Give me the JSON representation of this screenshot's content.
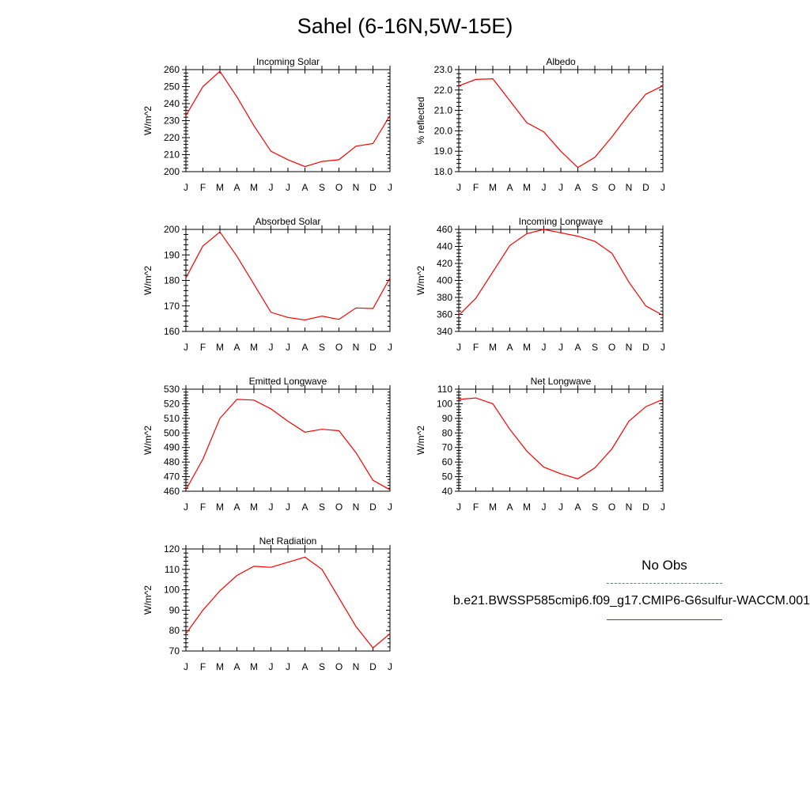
{
  "title": "Sahel (6-16N,5W-15E)",
  "legend": {
    "obs_label": "No Obs",
    "obs_color": "#6666ff",
    "model_label": "b.e21.BWSSP585cmip6.f09_g17.CMIP6-G6sulfur-WACCM.001",
    "model_color": "#ff0000"
  },
  "chart_data": [
    {
      "type": "line",
      "title": "Incoming Solar",
      "ylabel": "W/m^2",
      "categories": [
        "J",
        "F",
        "M",
        "A",
        "M",
        "J",
        "J",
        "A",
        "S",
        "O",
        "N",
        "D",
        "J"
      ],
      "ylim": [
        200,
        260
      ],
      "yticks": [
        "200",
        "210",
        "220",
        "230",
        "240",
        "250",
        "260"
      ],
      "series": [
        {
          "values": [
            233,
            250,
            259,
            244,
            227,
            212,
            207,
            203,
            206,
            207,
            215,
            216.5,
            233
          ]
        }
      ]
    },
    {
      "type": "line",
      "title": "Albedo",
      "ylabel": "% reflected",
      "categories": [
        "J",
        "F",
        "M",
        "A",
        "M",
        "J",
        "J",
        "A",
        "S",
        "O",
        "N",
        "D",
        "J"
      ],
      "ylim": [
        18,
        23
      ],
      "yticks": [
        "18.0",
        "19.0",
        "20.0",
        "21.0",
        "22.0",
        "23.0"
      ],
      "series": [
        {
          "values": [
            22.2,
            22.52,
            22.55,
            21.48,
            20.4,
            19.95,
            19.0,
            18.2,
            18.7,
            19.7,
            20.8,
            21.8,
            22.2
          ]
        }
      ]
    },
    {
      "type": "line",
      "title": "Absorbed Solar",
      "ylabel": "W/m^2",
      "categories": [
        "J",
        "F",
        "M",
        "A",
        "M",
        "J",
        "J",
        "A",
        "S",
        "O",
        "N",
        "D",
        "J"
      ],
      "ylim": [
        160,
        200
      ],
      "yticks": [
        "160",
        "170",
        "180",
        "190",
        "200"
      ],
      "series": [
        {
          "values": [
            181,
            193.5,
            199,
            189.5,
            178.5,
            167.5,
            165.5,
            164.5,
            166,
            164.7,
            169.2,
            169,
            181
          ]
        }
      ]
    },
    {
      "type": "line",
      "title": "Incoming Longwave",
      "ylabel": "W/m^2",
      "categories": [
        "J",
        "F",
        "M",
        "A",
        "M",
        "J",
        "J",
        "A",
        "S",
        "O",
        "N",
        "D",
        "J"
      ],
      "ylim": [
        340,
        460
      ],
      "yticks": [
        "340",
        "360",
        "380",
        "400",
        "420",
        "440",
        "460"
      ],
      "series": [
        {
          "values": [
            359,
            379,
            410,
            441,
            455,
            460,
            456,
            452,
            446,
            432,
            398,
            370,
            359
          ]
        }
      ]
    },
    {
      "type": "line",
      "title": "Emitted Longwave",
      "ylabel": "W/m^2",
      "categories": [
        "J",
        "F",
        "M",
        "A",
        "M",
        "J",
        "J",
        "A",
        "S",
        "O",
        "N",
        "D",
        "J"
      ],
      "ylim": [
        460,
        530
      ],
      "yticks": [
        "460",
        "470",
        "480",
        "490",
        "500",
        "510",
        "520",
        "530"
      ],
      "series": [
        {
          "values": [
            461,
            482,
            510,
            523,
            522.5,
            516.5,
            508,
            500.5,
            502.5,
            501.5,
            486.5,
            467.5,
            461
          ]
        }
      ]
    },
    {
      "type": "line",
      "title": "Net Longwave",
      "ylabel": "W/m^2",
      "categories": [
        "J",
        "F",
        "M",
        "A",
        "M",
        "J",
        "J",
        "A",
        "S",
        "O",
        "N",
        "D",
        "J"
      ],
      "ylim": [
        40,
        110
      ],
      "yticks": [
        "40",
        "50",
        "60",
        "70",
        "80",
        "90",
        "100",
        "110"
      ],
      "series": [
        {
          "values": [
            103,
            104,
            100,
            82.5,
            67.5,
            56.5,
            52,
            48.5,
            56,
            69,
            88,
            98,
            103
          ]
        }
      ]
    },
    {
      "type": "line",
      "title": "Net Radiation",
      "ylabel": "W/m^2",
      "categories": [
        "J",
        "F",
        "M",
        "A",
        "M",
        "J",
        "J",
        "A",
        "S",
        "O",
        "N",
        "D",
        "J"
      ],
      "ylim": [
        70,
        120
      ],
      "yticks": [
        "70",
        "80",
        "90",
        "100",
        "110",
        "120"
      ],
      "series": [
        {
          "values": [
            78.5,
            90,
            99.5,
            107,
            111.5,
            111,
            113.5,
            116,
            110,
            96,
            82,
            71.5,
            78.5
          ]
        }
      ]
    }
  ]
}
